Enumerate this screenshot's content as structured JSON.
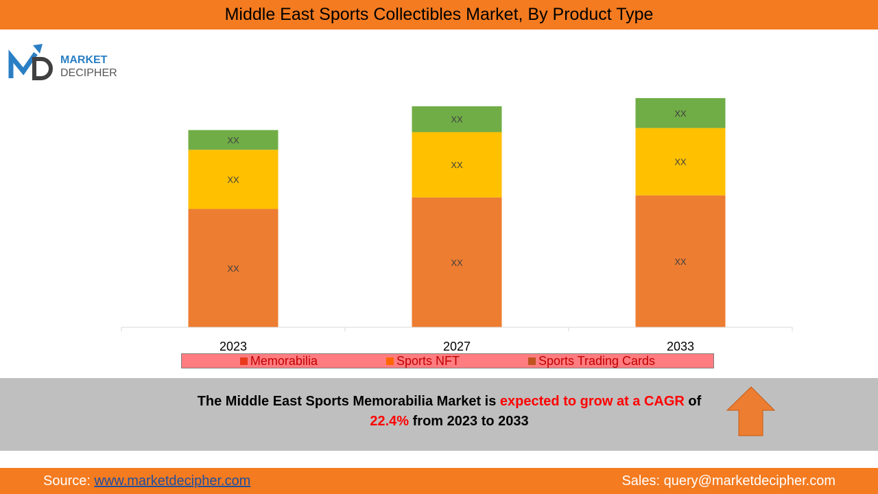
{
  "header": {
    "title": "Middle East Sports Collectibles Market, By Product Type"
  },
  "logo": {
    "line1": "MARKET",
    "line2": "DECIPHER"
  },
  "chart_data": {
    "type": "bar",
    "stacked": true,
    "categories": [
      "2023",
      "2027",
      "2033"
    ],
    "series": [
      {
        "name": "Memorabilia",
        "legend_color": "#E8391D",
        "bar_color": "#ED7D31",
        "values": [
          174,
          191,
          194
        ],
        "labels": [
          "XX",
          "XX",
          "XX"
        ]
      },
      {
        "name": "Sports NFT",
        "legend_color": "#FF6600",
        "bar_color": "#FFC000",
        "values": [
          87,
          96,
          99
        ],
        "labels": [
          "XX",
          "XX",
          "XX"
        ]
      },
      {
        "name": "Sports Trading Cards",
        "legend_color": "#C0531F",
        "bar_color": "#70AD47",
        "values": [
          29,
          38,
          44
        ],
        "labels": [
          "XX",
          "XX",
          "XX"
        ]
      }
    ],
    "ylim": [
      0,
      340
    ],
    "grid": false,
    "legend_position": "bottom"
  },
  "banner": {
    "part1": "The Middle East Sports Memorabilia Market is ",
    "part2": "expected to grow at a CAGR",
    "part3": " of",
    "part4": "22.4%",
    "part5": " from 2023 to 2033",
    "icon": "up-arrow-icon"
  },
  "footer": {
    "source_label": "Source: ",
    "source_link": "www.marketdecipher.com",
    "sales": "Sales: query@marketdecipher.com"
  }
}
